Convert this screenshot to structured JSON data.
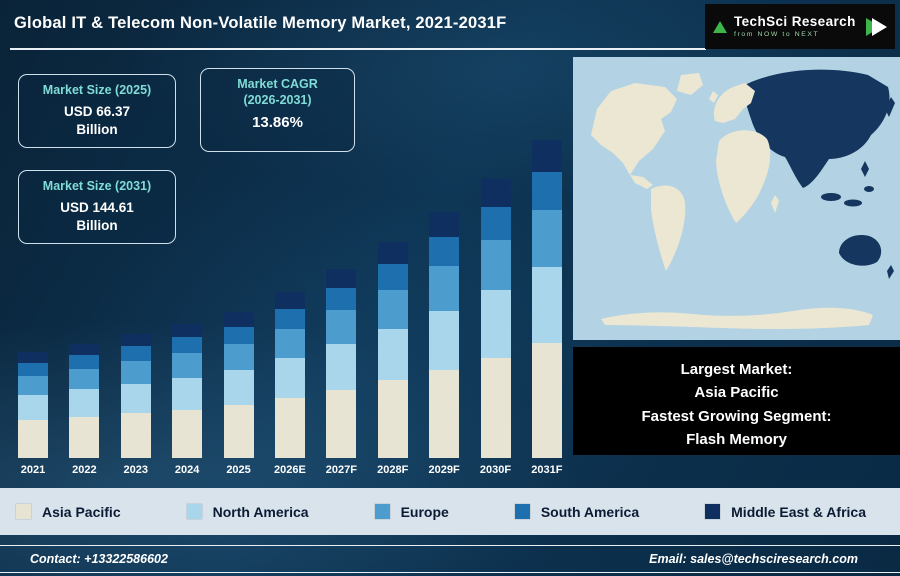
{
  "header": {
    "title": "Global IT & Telecom Non-Volatile Memory Market, 2021-2031F"
  },
  "logo": {
    "name": "TechSci Research",
    "tagline": "from NOW to NEXT"
  },
  "info_boxes": {
    "size2025": {
      "label": "Market Size (2025)",
      "value": "USD 66.37",
      "unit": "Billion"
    },
    "cagr": {
      "label": "Market CAGR",
      "label2": "(2026-2031)",
      "value": "13.86%"
    },
    "size2031": {
      "label": "Market Size (2031)",
      "value": "USD 144.61",
      "unit": "Billion"
    }
  },
  "chart_data": {
    "type": "bar",
    "stacked": true,
    "title": "Global IT & Telecom Non-Volatile Memory Market, 2021-2031F",
    "unit": "USD Billion",
    "categories": [
      "2021",
      "2022",
      "2023",
      "2024",
      "2025",
      "2026E",
      "2027F",
      "2028F",
      "2029F",
      "2030F",
      "2031F"
    ],
    "series": [
      {
        "name": "Asia Pacific",
        "color": "#e7e4d3",
        "values": [
          17.3,
          18.7,
          20.3,
          22.0,
          23.9,
          27.2,
          31.0,
          35.3,
          40.2,
          45.7,
          52.1
        ]
      },
      {
        "name": "North America",
        "color": "#a9d6ea",
        "values": [
          11.5,
          12.5,
          13.5,
          14.6,
          15.9,
          18.1,
          20.7,
          23.5,
          26.8,
          30.5,
          34.7
        ]
      },
      {
        "name": "Europe",
        "color": "#4c9dcd",
        "values": [
          8.6,
          9.4,
          10.1,
          11.0,
          11.9,
          13.6,
          15.5,
          17.6,
          20.1,
          22.9,
          26.0
        ]
      },
      {
        "name": "South America",
        "color": "#1e6fae",
        "values": [
          5.8,
          6.2,
          6.8,
          7.3,
          8.0,
          9.1,
          10.3,
          11.8,
          13.4,
          15.2,
          17.4
        ]
      },
      {
        "name": "Middle East & Africa",
        "color": "#0e2f5f",
        "values": [
          4.8,
          5.2,
          5.6,
          6.1,
          6.6,
          7.6,
          8.6,
          9.8,
          11.2,
          12.7,
          14.5
        ]
      }
    ],
    "annotations": {
      "market_size_2025": "USD 66.37 Billion",
      "market_size_2031": "USD 144.61 Billion",
      "cagr_2026_2031": "13.86%"
    },
    "ylim": [
      0,
      150
    ],
    "grid": false,
    "legend_position": "bottom"
  },
  "map_panel": {
    "ocean_color": "#b3d3e4",
    "land_color": "#ece7d3",
    "highlight_color": "#14365f",
    "highlighted_region": "Asia Pacific"
  },
  "highlight_box": {
    "lines": [
      "Largest Market:",
      "Asia Pacific",
      "Fastest Growing Segment:",
      "Flash Memory"
    ]
  },
  "footer": {
    "contact": "Contact: +13322586602",
    "email": "Email: sales@techsciresearch.com"
  }
}
